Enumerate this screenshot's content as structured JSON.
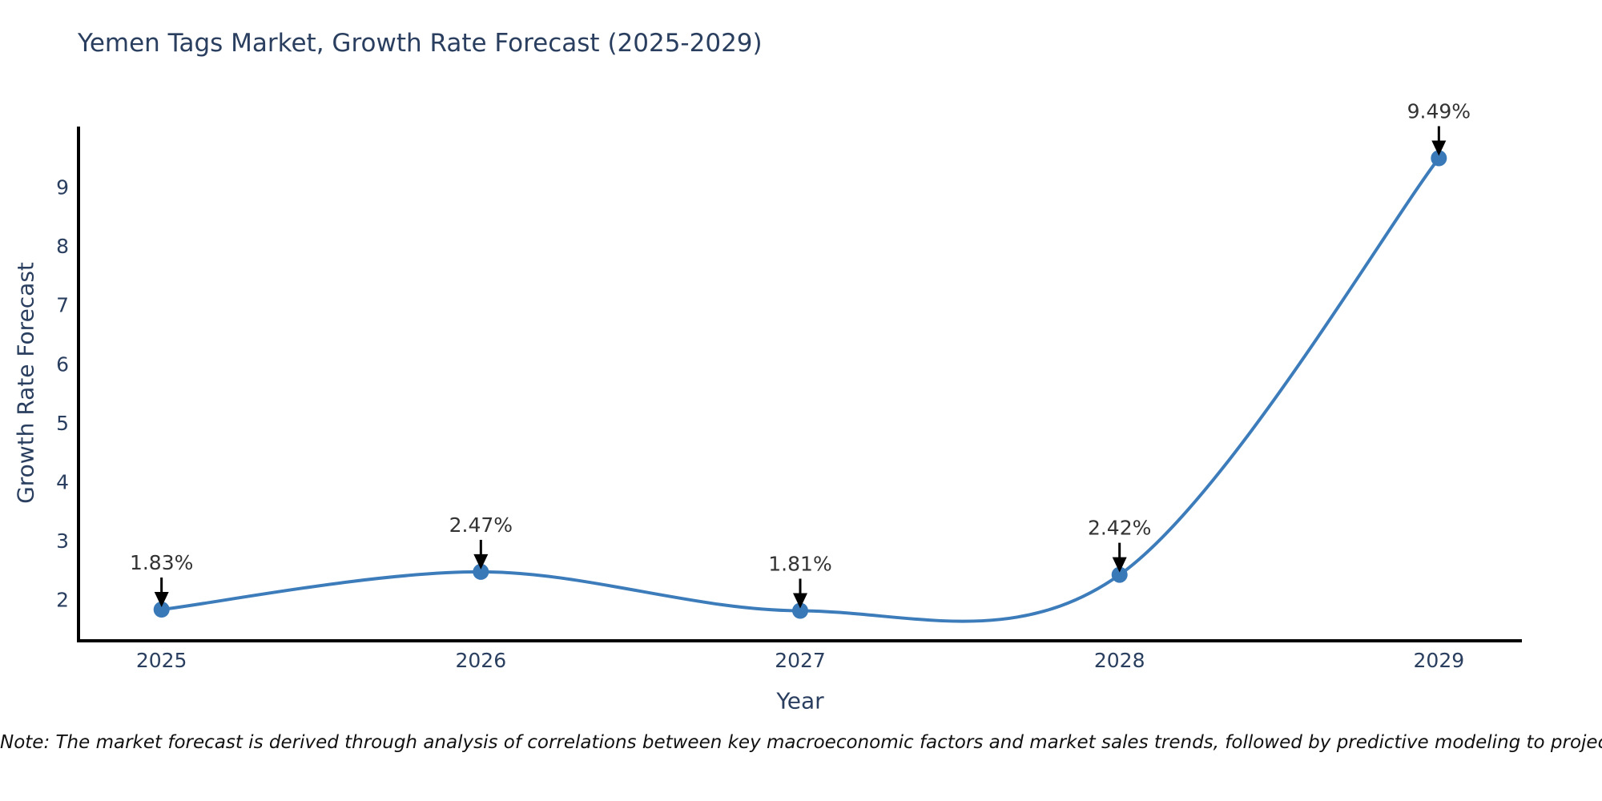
{
  "chart": {
    "title": "Yemen Tags Market, Growth Rate Forecast (2025-2029)",
    "xlabel": "Year",
    "ylabel": "Growth Rate Forecast",
    "note": "Note: The market forecast is derived through analysis of correlations between key macroeconomic factors and market sales trends, followed by predictive modeling to project future sales."
  },
  "chart_data": {
    "type": "line",
    "title": "Yemen Tags Market, Growth Rate Forecast (2025-2029)",
    "xlabel": "Year",
    "ylabel": "Growth Rate Forecast",
    "x": [
      2025,
      2026,
      2027,
      2028,
      2029
    ],
    "y": [
      1.83,
      2.47,
      1.81,
      2.42,
      9.49
    ],
    "point_labels": [
      "1.83%",
      "2.47%",
      "1.81%",
      "2.42%",
      "9.49%"
    ],
    "x_tick_labels": [
      "2025",
      "2026",
      "2027",
      "2028",
      "2029"
    ],
    "y_ticks": [
      2,
      3,
      4,
      5,
      6,
      7,
      8,
      9
    ],
    "x_range": [
      2024.74,
      2029.26
    ],
    "y_range": [
      1.3,
      10.0
    ],
    "line_shape": "spline",
    "grid": false,
    "legend": "none",
    "colors": {
      "line": "#3d7cba",
      "marker": "#3a79b8",
      "arrow": "#000000",
      "axis": "#000000",
      "axis_text": "#2a3f5f",
      "annotation_text": "#333333",
      "note_text": "#111111",
      "background": "#ffffff"
    }
  }
}
